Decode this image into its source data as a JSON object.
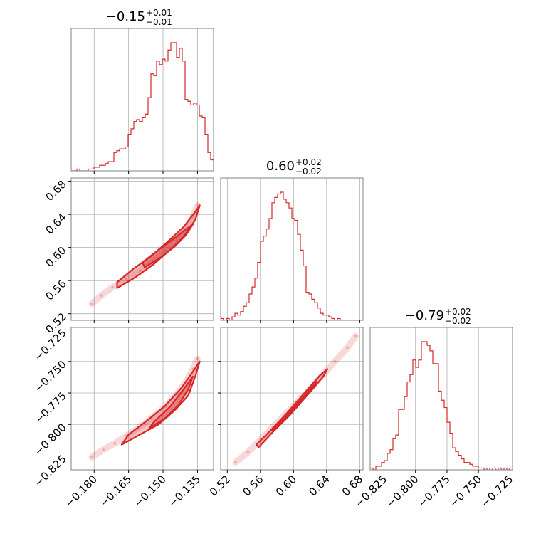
{
  "chart_data": {
    "type": "corner",
    "color": "#d62728",
    "grid": true,
    "parameters": [
      {
        "title_value": "−0.15",
        "err_plus": "+0.01",
        "err_minus": "−0.01",
        "range": [
          -0.19,
          -0.128
        ],
        "ticks": [
          -0.18,
          -0.165,
          -0.15,
          -0.135
        ],
        "tick_labels": [
          "−0.180",
          "−0.165",
          "−0.150",
          "−0.135"
        ],
        "hist": {
          "edges_start": -0.19,
          "bin_width": 0.00124,
          "counts": [
            0,
            0,
            1,
            0,
            0,
            0,
            1,
            1,
            2,
            2,
            3,
            3,
            4,
            5,
            5,
            10,
            11,
            12,
            12,
            13,
            20,
            23,
            27,
            28,
            27,
            29,
            31,
            40,
            53,
            52,
            60,
            58,
            61,
            60,
            66,
            70,
            70,
            62,
            67,
            60,
            39,
            38,
            36,
            37,
            36,
            30,
            29,
            20,
            10,
            6,
            1,
            0,
            0
          ]
        }
      },
      {
        "title_value": "0.60",
        "err_plus": "+0.02",
        "err_minus": "−0.02",
        "range": [
          0.512,
          0.684
        ],
        "ticks": [
          0.52,
          0.56,
          0.6,
          0.64,
          0.68
        ],
        "tick_labels": [
          "0.52",
          "0.56",
          "0.60",
          "0.64",
          "0.68"
        ],
        "hist": {
          "edges_start": 0.512,
          "bin_width": 0.00344,
          "counts": [
            1,
            0,
            1,
            0,
            2,
            4,
            3,
            5,
            8,
            10,
            15,
            19,
            24,
            33,
            45,
            48,
            52,
            58,
            67,
            70,
            72,
            73,
            69,
            67,
            64,
            58,
            57,
            49,
            40,
            31,
            16,
            15,
            12,
            10,
            7,
            4,
            3,
            3,
            2,
            1,
            0,
            1,
            0,
            0,
            0,
            0,
            0,
            0,
            0,
            0
          ]
        }
      },
      {
        "title_value": "−0.79",
        "err_plus": "+0.02",
        "err_minus": "−0.02",
        "range": [
          -0.836,
          -0.723
        ],
        "ticks": [
          -0.825,
          -0.8,
          -0.775,
          -0.75,
          -0.725
        ],
        "tick_labels": [
          "−0.825",
          "−0.800",
          "−0.775",
          "−0.750",
          "−0.725"
        ],
        "hist": {
          "edges_start": -0.836,
          "bin_width": 0.00226,
          "counts": [
            1,
            0,
            2,
            2,
            4,
            5,
            9,
            11,
            17,
            19,
            33,
            33,
            40,
            48,
            52,
            60,
            56,
            60,
            70,
            70,
            68,
            65,
            58,
            58,
            43,
            38,
            34,
            26,
            20,
            12,
            10,
            8,
            6,
            4,
            4,
            3,
            2,
            2,
            1,
            1,
            0,
            1,
            0,
            1,
            0,
            1,
            0,
            1,
            0,
            1
          ]
        }
      }
    ],
    "pairs": [
      {
        "row": 1,
        "col": 0,
        "points": [
          [
            -0.181,
            0.532
          ],
          [
            -0.177,
            0.542
          ],
          [
            -0.172,
            0.552
          ],
          [
            -0.166,
            0.562
          ],
          [
            -0.16,
            0.572
          ],
          [
            -0.154,
            0.584
          ],
          [
            -0.149,
            0.596
          ],
          [
            -0.144,
            0.609
          ],
          [
            -0.14,
            0.623
          ],
          [
            -0.137,
            0.637
          ],
          [
            -0.135,
            0.651
          ]
        ],
        "outer": [
          [
            -0.17,
            0.551
          ],
          [
            -0.162,
            0.564
          ],
          [
            -0.154,
            0.58
          ],
          [
            -0.147,
            0.597
          ],
          [
            -0.141,
            0.613
          ],
          [
            -0.136,
            0.633
          ],
          [
            -0.134,
            0.651
          ],
          [
            -0.136,
            0.643
          ],
          [
            -0.141,
            0.625
          ],
          [
            -0.148,
            0.607
          ],
          [
            -0.155,
            0.59
          ],
          [
            -0.163,
            0.574
          ],
          [
            -0.17,
            0.558
          ]
        ],
        "inner": [
          [
            -0.158,
            0.576
          ],
          [
            -0.151,
            0.588
          ],
          [
            -0.145,
            0.601
          ],
          [
            -0.14,
            0.615
          ],
          [
            -0.137,
            0.628
          ],
          [
            -0.141,
            0.62
          ],
          [
            -0.147,
            0.607
          ],
          [
            -0.153,
            0.595
          ],
          [
            -0.159,
            0.582
          ]
        ]
      },
      {
        "row": 2,
        "col": 0,
        "points": [
          [
            -0.181,
            -0.826
          ],
          [
            -0.176,
            -0.82
          ],
          [
            -0.171,
            -0.815
          ],
          [
            -0.166,
            -0.809
          ],
          [
            -0.161,
            -0.803
          ],
          [
            -0.155,
            -0.795
          ],
          [
            -0.149,
            -0.786
          ],
          [
            -0.144,
            -0.776
          ],
          [
            -0.14,
            -0.766
          ],
          [
            -0.137,
            -0.756
          ],
          [
            -0.135,
            -0.748
          ]
        ],
        "outer": [
          [
            -0.168,
            -0.816
          ],
          [
            -0.16,
            -0.808
          ],
          [
            -0.152,
            -0.8
          ],
          [
            -0.145,
            -0.789
          ],
          [
            -0.139,
            -0.777
          ],
          [
            -0.136,
            -0.762
          ],
          [
            -0.134,
            -0.75
          ],
          [
            -0.137,
            -0.758
          ],
          [
            -0.142,
            -0.771
          ],
          [
            -0.149,
            -0.785
          ],
          [
            -0.157,
            -0.797
          ],
          [
            -0.165,
            -0.808
          ]
        ],
        "inner": [
          [
            -0.156,
            -0.803
          ],
          [
            -0.149,
            -0.795
          ],
          [
            -0.143,
            -0.784
          ],
          [
            -0.139,
            -0.772
          ],
          [
            -0.137,
            -0.762
          ],
          [
            -0.141,
            -0.772
          ],
          [
            -0.147,
            -0.786
          ],
          [
            -0.154,
            -0.798
          ]
        ]
      },
      {
        "row": 2,
        "col": 1,
        "points": [
          [
            0.53,
            -0.83
          ],
          [
            0.545,
            -0.822
          ],
          [
            0.56,
            -0.812
          ],
          [
            0.575,
            -0.802
          ],
          [
            0.59,
            -0.792
          ],
          [
            0.605,
            -0.782
          ],
          [
            0.62,
            -0.772
          ],
          [
            0.635,
            -0.761
          ],
          [
            0.65,
            -0.75
          ],
          [
            0.665,
            -0.739
          ],
          [
            0.675,
            -0.73
          ]
        ],
        "outer": [
          [
            0.558,
            -0.818
          ],
          [
            0.575,
            -0.806
          ],
          [
            0.595,
            -0.793
          ],
          [
            0.615,
            -0.778
          ],
          [
            0.636,
            -0.762
          ],
          [
            0.641,
            -0.756
          ],
          [
            0.632,
            -0.761
          ],
          [
            0.612,
            -0.776
          ],
          [
            0.592,
            -0.791
          ],
          [
            0.572,
            -0.805
          ],
          [
            0.555,
            -0.816
          ]
        ],
        "inner": [
          [
            0.575,
            -0.805
          ],
          [
            0.59,
            -0.795
          ],
          [
            0.605,
            -0.784
          ],
          [
            0.62,
            -0.773
          ],
          [
            0.628,
            -0.766
          ],
          [
            0.62,
            -0.772
          ],
          [
            0.604,
            -0.784
          ],
          [
            0.589,
            -0.795
          ],
          [
            0.574,
            -0.804
          ]
        ]
      }
    ]
  }
}
